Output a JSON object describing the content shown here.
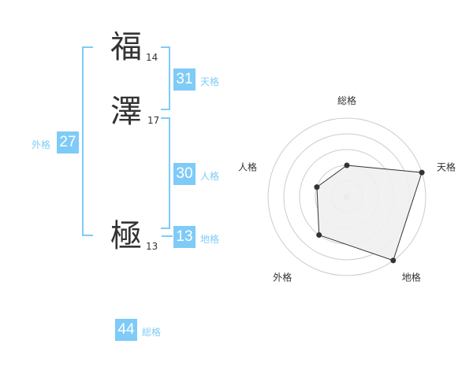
{
  "name": {
    "chars": [
      {
        "char": "福",
        "strokes": "14"
      },
      {
        "char": "澤",
        "strokes": "17"
      },
      {
        "char": "極",
        "strokes": "13"
      }
    ]
  },
  "scores": {
    "tenkaku": {
      "label": "天格",
      "value": "31"
    },
    "jinkaku": {
      "label": "人格",
      "value": "30"
    },
    "chikaku": {
      "label": "地格",
      "value": "13"
    },
    "gaikaku": {
      "label": "外格",
      "value": "27"
    },
    "soukaku": {
      "label": "総格",
      "value": "44"
    }
  },
  "colors": {
    "accent": "#7fcbf7",
    "radar_fill": "#f0f0f0",
    "radar_line": "#333333",
    "ring": "#cccccc"
  },
  "chart_data": {
    "type": "radar",
    "axes": [
      "総格",
      "天格",
      "地格",
      "外格",
      "人格"
    ],
    "values": [
      2,
      5,
      5,
      3,
      2
    ],
    "range": [
      0,
      5
    ],
    "rings": 5
  }
}
